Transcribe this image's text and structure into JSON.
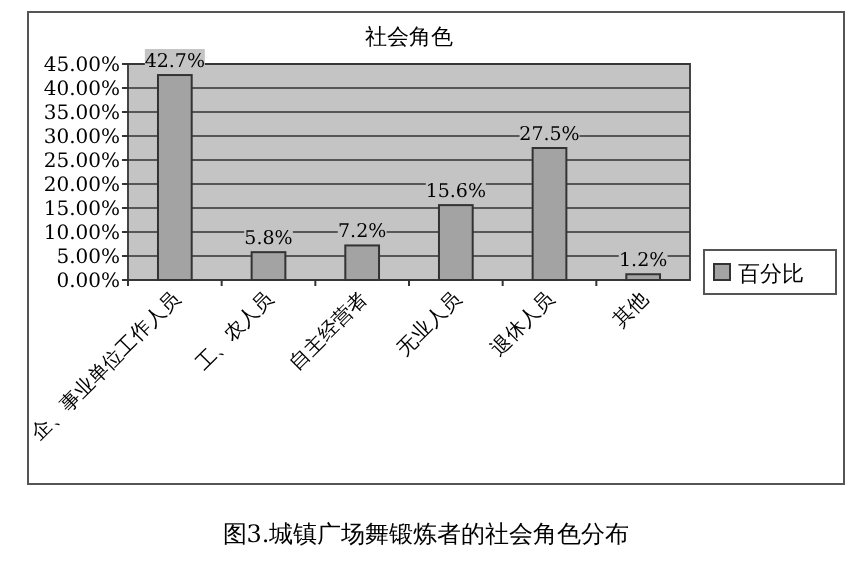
{
  "chart_data": {
    "type": "bar",
    "title": "社会角色",
    "categories": [
      "企、事业单位工作人员",
      "工、农人员",
      "自主经营者",
      "无业人员",
      "退休人员",
      "其他"
    ],
    "series": [
      {
        "name": "百分比",
        "color": "#a3a3a3",
        "values": [
          42.7,
          5.8,
          7.2,
          15.6,
          27.5,
          1.2
        ],
        "value_labels": [
          "42.7%",
          "5.8%",
          "7.2%",
          "15.6%",
          "27.5%",
          "1.2%"
        ]
      }
    ],
    "ylim": [
      0,
      45
    ],
    "yticks": [
      {
        "value": 0,
        "label": "0.00%"
      },
      {
        "value": 5,
        "label": "5.00%"
      },
      {
        "value": 10,
        "label": "10.00%"
      },
      {
        "value": 15,
        "label": "15.00%"
      },
      {
        "value": 20,
        "label": "20.00%"
      },
      {
        "value": 25,
        "label": "25.00%"
      },
      {
        "value": 30,
        "label": "30.00%"
      },
      {
        "value": 35,
        "label": "35.00%"
      },
      {
        "value": 40,
        "label": "40.00%"
      },
      {
        "value": 45,
        "label": "45.00%"
      }
    ],
    "grid": "y",
    "legend": "right",
    "annotations": [
      "图3.城镇广场舞锻炼者的社会角色分布"
    ]
  }
}
